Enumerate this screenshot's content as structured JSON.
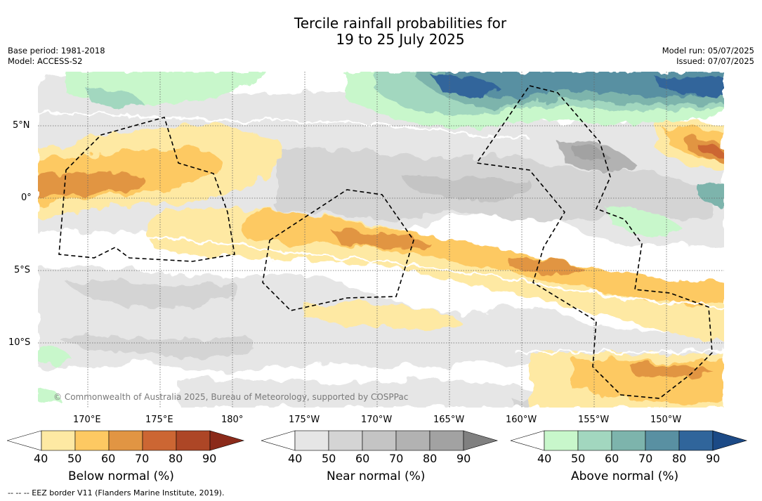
{
  "header": {
    "title_line1": "Tercile rainfall probabilities for",
    "title_line2": "19 to 25 July 2025",
    "base_period": "Base period: 1981-2018",
    "model": "Model: ACCESS-S2",
    "model_run": "Model run: 05/07/2025",
    "issued": "Issued: 07/07/2025"
  },
  "map": {
    "lat_labels": [
      "5°N",
      "0°",
      "5°S",
      "10°S"
    ],
    "lon_labels": [
      "170°E",
      "175°E",
      "180°",
      "175°W",
      "170°W",
      "165°W",
      "160°W",
      "155°W",
      "150°W"
    ],
    "copyright": "© Commonwealth of Australia 2025, Bureau of Meteorology, supported by COSPPac"
  },
  "colorbars": {
    "below": {
      "title": "Below normal (%)",
      "ticks": [
        "40",
        "50",
        "60",
        "70",
        "80",
        "90"
      ],
      "colors": [
        "#ffffff",
        "#fee9a3",
        "#fdc962",
        "#e19543",
        "#cc6633",
        "#ad4626",
        "#8b2a1a"
      ]
    },
    "near": {
      "title": "Near normal (%)",
      "ticks": [
        "40",
        "50",
        "60",
        "70",
        "80",
        "90"
      ],
      "colors": [
        "#ffffff",
        "#e6e6e6",
        "#d4d4d4",
        "#c4c4c4",
        "#b2b2b2",
        "#a2a2a2",
        "#808080"
      ]
    },
    "above": {
      "title": "Above normal (%)",
      "ticks": [
        "40",
        "50",
        "60",
        "70",
        "80",
        "90"
      ],
      "colors": [
        "#ffffff",
        "#c8f7cb",
        "#a2d7bf",
        "#7db4ac",
        "#5990a2",
        "#30659b",
        "#1c4a86"
      ]
    }
  },
  "footnote": "--  --  -- EEZ border V11 (Flanders Marine Institute, 2019)."
}
